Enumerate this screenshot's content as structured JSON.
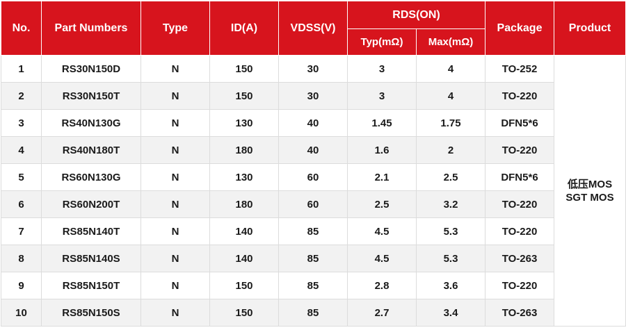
{
  "headers": {
    "no": "No.",
    "part_numbers": "Part Numbers",
    "type": "Type",
    "id": "ID(A)",
    "vdss": "VDSS(V)",
    "rds_on": "RDS(ON)",
    "typ": "Typ(mΩ)",
    "max": "Max(mΩ)",
    "package": "Package",
    "product": "Product"
  },
  "product": {
    "line1": "低压MOS",
    "line2": "SGT MOS"
  },
  "rows": [
    {
      "no": "1",
      "part": "RS30N150D",
      "type": "N",
      "id": "150",
      "vdss": "30",
      "typ": "3",
      "max": "4",
      "package": "TO-252"
    },
    {
      "no": "2",
      "part": "RS30N150T",
      "type": "N",
      "id": "150",
      "vdss": "30",
      "typ": "3",
      "max": "4",
      "package": "TO-220"
    },
    {
      "no": "3",
      "part": "RS40N130G",
      "type": "N",
      "id": "130",
      "vdss": "40",
      "typ": "1.45",
      "max": "1.75",
      "package": "DFN5*6"
    },
    {
      "no": "4",
      "part": "RS40N180T",
      "type": "N",
      "id": "180",
      "vdss": "40",
      "typ": "1.6",
      "max": "2",
      "package": "TO-220"
    },
    {
      "no": "5",
      "part": "RS60N130G",
      "type": "N",
      "id": "130",
      "vdss": "60",
      "typ": "2.1",
      "max": "2.5",
      "package": "DFN5*6"
    },
    {
      "no": "6",
      "part": "RS60N200T",
      "type": "N",
      "id": "180",
      "vdss": "60",
      "typ": "2.5",
      "max": "3.2",
      "package": "TO-220"
    },
    {
      "no": "7",
      "part": "RS85N140T",
      "type": "N",
      "id": "140",
      "vdss": "85",
      "typ": "4.5",
      "max": "5.3",
      "package": "TO-220"
    },
    {
      "no": "8",
      "part": "RS85N140S",
      "type": "N",
      "id": "140",
      "vdss": "85",
      "typ": "4.5",
      "max": "5.3",
      "package": "TO-263"
    },
    {
      "no": "9",
      "part": "RS85N150T",
      "type": "N",
      "id": "150",
      "vdss": "85",
      "typ": "2.8",
      "max": "3.6",
      "package": "TO-220"
    },
    {
      "no": "10",
      "part": "RS85N150S",
      "type": "N",
      "id": "150",
      "vdss": "85",
      "typ": "2.7",
      "max": "3.4",
      "package": "TO-263"
    }
  ]
}
